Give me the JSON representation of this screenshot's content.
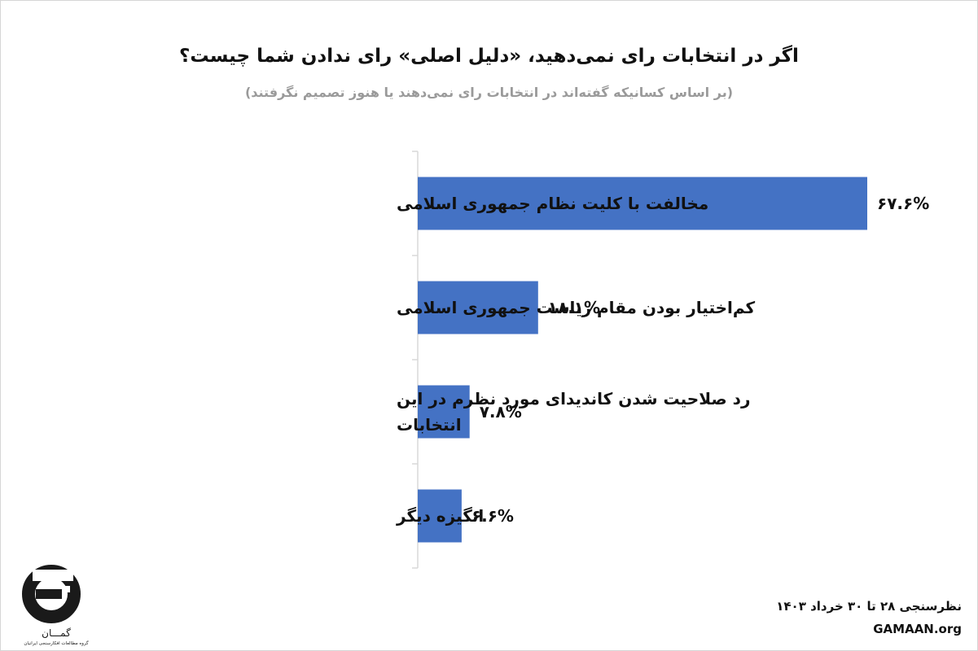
{
  "chart_data": {
    "type": "bar",
    "orientation": "horizontal",
    "title": "اگر در انتخابات رای نمی‌دهید، «دلیل اصلی» رای ندادن شما چیست؟",
    "subtitle": "(بر اساس کسانیکه گفته‌اند در انتخابات رای نمی‌دهند یا هنوز تصمیم نگرفتند)",
    "categories": [
      [
        "مخالفت با کلیت نظام جمهوری اسلامی"
      ],
      [
        "کم‌اختیار بودن مقام ریاست جمهوری اسلامی"
      ],
      [
        "رد صلاحیت شدن کاندیدای مورد نظرم در این",
        "انتخابات"
      ],
      [
        "انگیزه دیگر"
      ]
    ],
    "values": [
      67.6,
      18.1,
      7.8,
      6.6
    ],
    "value_labels": [
      "۶۷.۶%",
      "۱۸.۱%",
      "۷.۸%",
      "۶.۶%"
    ],
    "bar_color": "#4472c4",
    "axis_color": "#d9d9d9",
    "grid": false,
    "legend": "none"
  },
  "branding": {
    "logo_word": "گمـــان",
    "logo_subtitle": "گروه مطالعات افکارسنجی ایرانیان"
  },
  "footer": {
    "poll_dates": "نظرسنجی ۲۸ تا ۳۰ خرداد ۱۴۰۳",
    "website": "GAMAAN.org"
  }
}
